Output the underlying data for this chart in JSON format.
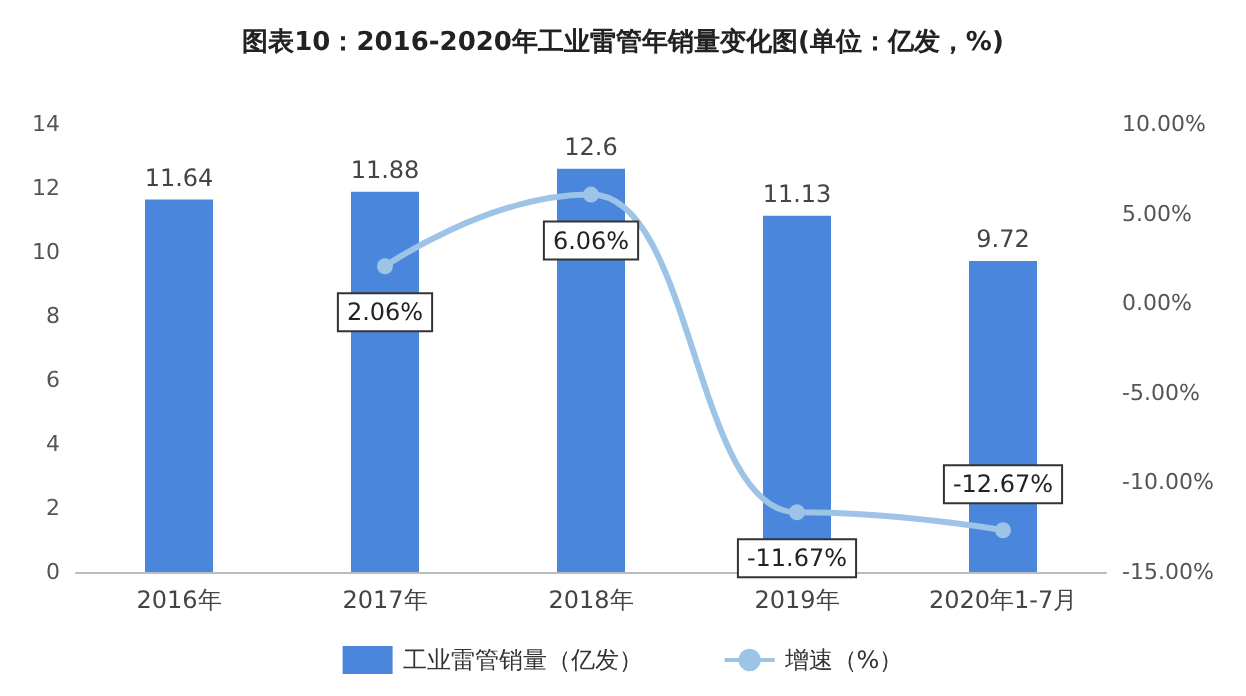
{
  "chart_data": {
    "type": "bar",
    "title": "图表10：2016-2020年工业雷管年销量变化图(单位：亿发，%)",
    "categories": [
      "2016年",
      "2017年",
      "2018年",
      "2019年",
      "2020年1-7月"
    ],
    "series": [
      {
        "name": "工业雷管销量（亿发）",
        "color": "#4a87dc",
        "values": [
          11.64,
          11.88,
          12.6,
          11.13,
          9.72
        ]
      },
      {
        "name": "增速（%）",
        "type": "line",
        "axis": "y2",
        "color": "#9dc3e6",
        "values": [
          null,
          2.06,
          6.06,
          -11.67,
          -12.67
        ],
        "value_labels": [
          null,
          "2.06%",
          "6.06%",
          "-11.67%",
          "-12.67%"
        ]
      }
    ],
    "ylim": [
      0,
      14
    ],
    "yticks": [
      0,
      2,
      4,
      6,
      8,
      10,
      12,
      14
    ],
    "y2lim": [
      -15,
      10
    ],
    "y2ticks": [
      {
        "value": -15,
        "label": "-15.00%"
      },
      {
        "value": -10,
        "label": "-10.00%"
      },
      {
        "value": -5,
        "label": "-5.00%"
      },
      {
        "value": 0,
        "label": "0.00%"
      },
      {
        "value": 5,
        "label": "5.00%"
      },
      {
        "value": 10,
        "label": "10.00%"
      }
    ],
    "data_labels": true,
    "legend": "bottom",
    "grid": false,
    "marker": "circle"
  }
}
